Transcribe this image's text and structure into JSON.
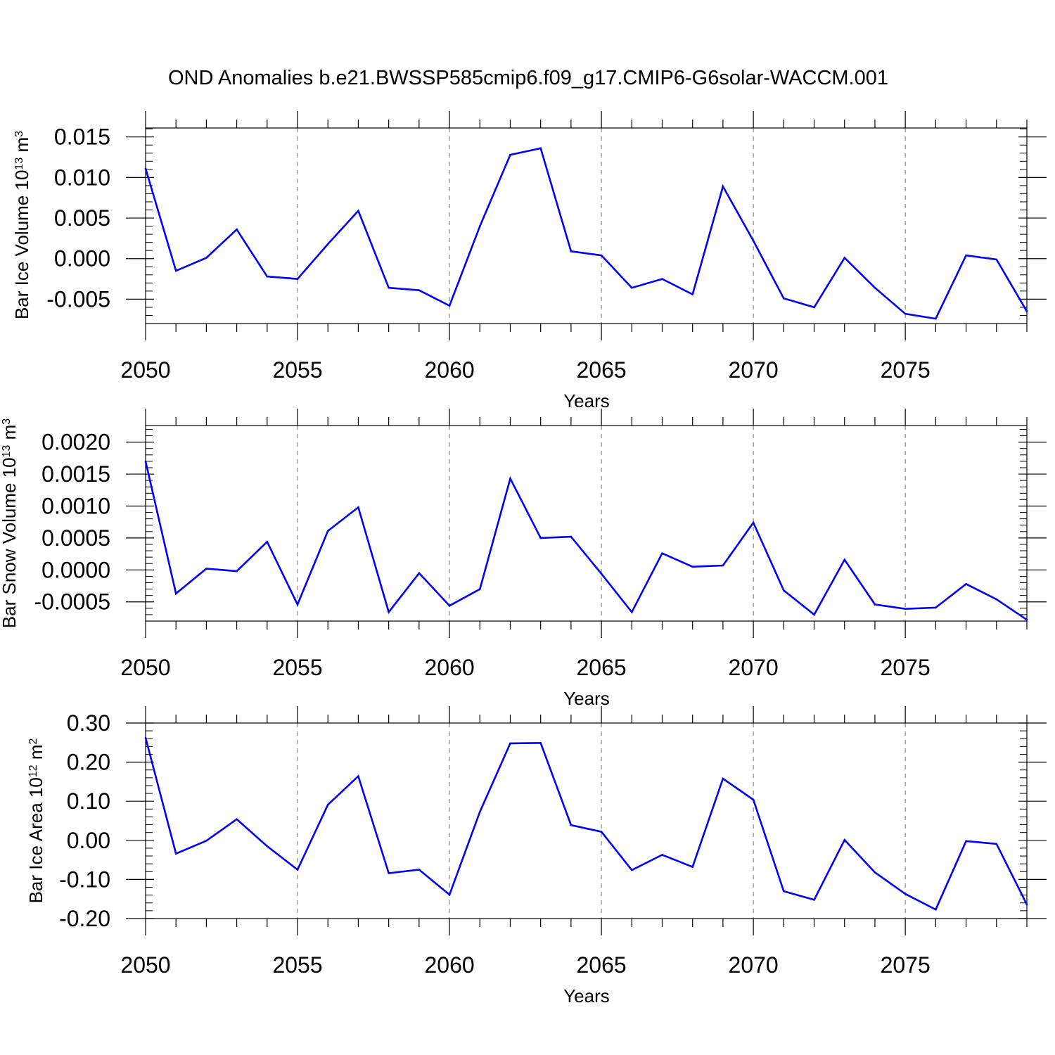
{
  "title": "OND Anomalies b.e21.BWSSP585cmip6.f09_g17.CMIP6-G6solar-WACCM.001",
  "colors": {
    "line": "#0000ff",
    "axis": "#000000",
    "grid": "#a0a0a0"
  },
  "chart_data": [
    {
      "type": "line",
      "ylabel": {
        "prefix": "Bar Ice Volume 10",
        "exponent": "13",
        "unit": " m",
        "unit_exponent": "3"
      },
      "xlabel": "Years",
      "xlim": [
        2050,
        2079
      ],
      "ylim": [
        -0.008,
        0.0161
      ],
      "xticks": [
        2050,
        2055,
        2060,
        2065,
        2070,
        2075
      ],
      "xtick_labels": [
        "2050",
        "2055",
        "2060",
        "2065",
        "2070",
        "2075"
      ],
      "yticks": [
        -0.005,
        0.0,
        0.005,
        0.01,
        0.015
      ],
      "ytick_labels": [
        "-0.005",
        "0.000",
        "0.005",
        "0.010",
        "0.015"
      ],
      "grid": "vertical-dashed",
      "x": [
        2050,
        2051,
        2052,
        2053,
        2054,
        2055,
        2056,
        2057,
        2058,
        2059,
        2060,
        2061,
        2062,
        2063,
        2064,
        2065,
        2066,
        2067,
        2068,
        2069,
        2070,
        2071,
        2072,
        2073,
        2074,
        2075,
        2076,
        2077,
        2078,
        2079
      ],
      "series": [
        {
          "values": [
            0.0111,
            -0.0015,
            0.0001,
            0.0036,
            -0.0022,
            -0.0025,
            0.0018,
            0.0059,
            -0.0036,
            -0.0039,
            -0.0058,
            0.004,
            0.0128,
            0.0136,
            0.0009,
            0.0004,
            -0.0036,
            -0.0025,
            -0.0044,
            0.0089,
            0.0022,
            -0.0049,
            -0.006,
            0.0001,
            -0.0036,
            -0.0068,
            -0.0074,
            0.0004,
            -0.0001,
            -0.0065
          ]
        }
      ]
    },
    {
      "type": "line",
      "ylabel": {
        "prefix": "Bar Snow Volume 10",
        "exponent": "13",
        "unit": " m",
        "unit_exponent": "3"
      },
      "xlabel": "Years",
      "xlim": [
        2050,
        2079
      ],
      "ylim": [
        -0.0008,
        0.00226
      ],
      "xticks": [
        2050,
        2055,
        2060,
        2065,
        2070,
        2075
      ],
      "xtick_labels": [
        "2050",
        "2055",
        "2060",
        "2065",
        "2070",
        "2075"
      ],
      "yticks": [
        -0.0005,
        0.0,
        0.0005,
        0.001,
        0.0015,
        0.002
      ],
      "ytick_labels": [
        "-0.0005",
        "0.0000",
        "0.0005",
        "0.0010",
        "0.0015",
        "0.0020"
      ],
      "grid": "vertical-dashed",
      "x": [
        2050,
        2051,
        2052,
        2053,
        2054,
        2055,
        2056,
        2057,
        2058,
        2059,
        2060,
        2061,
        2062,
        2063,
        2064,
        2065,
        2066,
        2067,
        2068,
        2069,
        2070,
        2071,
        2072,
        2073,
        2074,
        2075,
        2076,
        2077,
        2078,
        2079
      ],
      "series": [
        {
          "values": [
            0.0017,
            -0.00037,
            2e-05,
            -2e-05,
            0.00044,
            -0.00054,
            0.00061,
            0.00098,
            -0.00066,
            -5e-05,
            -0.00056,
            -0.0003,
            0.00143,
            0.0005,
            0.00052,
            -6e-05,
            -0.00066,
            0.00026,
            5e-05,
            7e-05,
            0.00074,
            -0.00032,
            -0.0007,
            0.00016,
            -0.00054,
            -0.00061,
            -0.00059,
            -0.00022,
            -0.00046,
            -0.00078
          ]
        }
      ]
    },
    {
      "type": "line",
      "ylabel": {
        "prefix": "Bar Ice Area 10",
        "exponent": "12",
        "unit": " m",
        "unit_exponent": "2"
      },
      "xlabel": "Years",
      "xlim": [
        2050,
        2079
      ],
      "ylim": [
        -0.2,
        0.3
      ],
      "xticks": [
        2050,
        2055,
        2060,
        2065,
        2070,
        2075
      ],
      "xtick_labels": [
        "2050",
        "2055",
        "2060",
        "2065",
        "2070",
        "2075"
      ],
      "yticks": [
        -0.2,
        -0.1,
        0.0,
        0.1,
        0.2,
        0.3
      ],
      "ytick_labels": [
        "-0.20",
        "-0.10",
        "0.00",
        "0.10",
        "0.20",
        "0.30"
      ],
      "grid": "vertical-dashed",
      "x": [
        2050,
        2051,
        2052,
        2053,
        2054,
        2055,
        2056,
        2057,
        2058,
        2059,
        2060,
        2061,
        2062,
        2063,
        2064,
        2065,
        2066,
        2067,
        2068,
        2069,
        2070,
        2071,
        2072,
        2073,
        2074,
        2075,
        2076,
        2077,
        2078,
        2079
      ],
      "series": [
        {
          "values": [
            0.262,
            -0.034,
            -0.001,
            0.054,
            -0.015,
            -0.075,
            0.091,
            0.164,
            -0.084,
            -0.075,
            -0.139,
            0.073,
            0.248,
            0.249,
            0.039,
            0.022,
            -0.076,
            -0.037,
            -0.068,
            0.158,
            0.104,
            -0.13,
            -0.152,
            0.001,
            -0.082,
            -0.137,
            -0.177,
            -0.002,
            -0.009,
            -0.164
          ]
        }
      ]
    }
  ]
}
